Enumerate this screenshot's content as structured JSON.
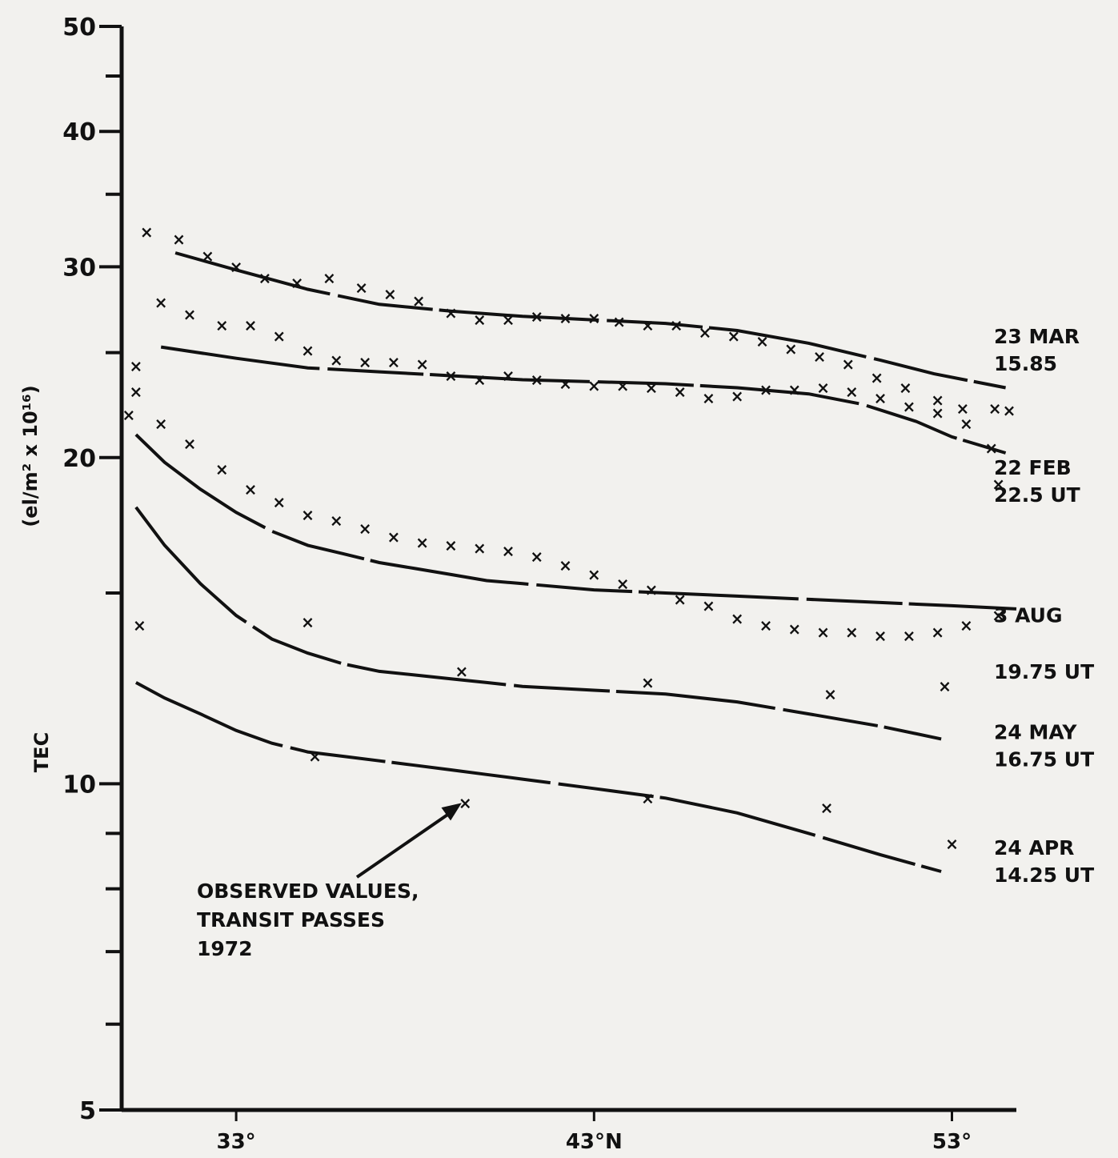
{
  "chart_data": {
    "type": "line",
    "x_unit": "latitude (°N)",
    "y_scale": "log",
    "ylim": [
      5,
      50
    ],
    "xlim": [
      29.8,
      54.8
    ],
    "ylabel_line1": "TEC",
    "ylabel_line2": "(el/m² x 10¹⁶)",
    "yticks": [
      {
        "value": 5,
        "label": "5"
      },
      {
        "value": 10,
        "label": "10"
      },
      {
        "value": 20,
        "label": "20"
      },
      {
        "value": 30,
        "label": "30"
      },
      {
        "value": 40,
        "label": "40"
      },
      {
        "value": 50,
        "label": "50"
      }
    ],
    "yminor": [
      6,
      7,
      8,
      9,
      15,
      25,
      35,
      45
    ],
    "xticks": [
      {
        "value": 33,
        "label": "33°"
      },
      {
        "value": 43,
        "label": "43°N"
      },
      {
        "value": 53,
        "label": "53°"
      }
    ],
    "annotation": {
      "lines": [
        "OBSERVED VALUES,",
        "TRANSIT PASSES",
        "1972"
      ],
      "arrow_to": {
        "x": 39.3,
        "y": 9.6
      }
    },
    "curve_labels": [
      {
        "lines": [
          "23 MAR",
          "15.85"
        ],
        "y": 25.5
      },
      {
        "lines": [
          "22 FEB",
          "22.5 UT"
        ],
        "y": 19.3
      },
      {
        "lines": [
          "3 AUG"
        ],
        "y": 14.1
      },
      {
        "lines": [
          "19.75 UT"
        ],
        "y": 12.5
      },
      {
        "lines": [
          "24 MAY",
          "16.75 UT"
        ],
        "y": 11.0
      },
      {
        "lines": [
          "24 APR",
          "14.25 UT"
        ],
        "y": 8.6
      }
    ],
    "curves": [
      {
        "x": [
          31.3,
          33.0,
          35.0,
          37.0,
          39.0,
          41.0,
          43.0,
          45.0,
          47.0,
          49.0,
          51.0,
          52.5,
          54.5
        ],
        "y": [
          30.9,
          29.8,
          28.6,
          27.7,
          27.3,
          27.0,
          26.8,
          26.6,
          26.2,
          25.5,
          24.6,
          23.9,
          23.2
        ]
      },
      {
        "x": [
          30.9,
          33.0,
          35.0,
          37.0,
          39.0,
          41.0,
          43.0,
          45.0,
          47.0,
          49.0,
          50.5,
          52.0,
          53.0,
          54.5
        ],
        "y": [
          25.3,
          24.7,
          24.2,
          24.0,
          23.8,
          23.6,
          23.5,
          23.4,
          23.2,
          22.9,
          22.4,
          21.6,
          20.9,
          20.2
        ]
      },
      {
        "x": [
          30.2,
          31.0,
          32.0,
          33.0,
          34.0,
          35.0,
          36.0,
          37.0,
          38.0,
          39.0,
          40.0,
          41.0,
          43.0,
          45.0,
          47.0,
          49.0,
          51.0,
          53.0,
          54.8
        ],
        "y": [
          21.0,
          19.8,
          18.7,
          17.8,
          17.1,
          16.6,
          16.3,
          16.0,
          15.8,
          15.6,
          15.4,
          15.3,
          15.1,
          15.0,
          14.9,
          14.8,
          14.7,
          14.6,
          14.5
        ]
      },
      {
        "x": [
          30.2,
          31.0,
          32.0,
          33.0,
          34.0,
          35.0,
          36.0,
          37.0,
          38.0,
          39.0,
          40.0,
          41.0,
          43.0,
          45.0,
          47.0,
          49.0,
          51.0,
          52.7
        ],
        "y": [
          18.0,
          16.6,
          15.3,
          14.3,
          13.6,
          13.2,
          12.9,
          12.7,
          12.6,
          12.5,
          12.4,
          12.3,
          12.2,
          12.1,
          11.9,
          11.6,
          11.3,
          11.0
        ]
      },
      {
        "x": [
          30.2,
          31.0,
          32.0,
          33.0,
          34.0,
          35.0,
          36.0,
          37.0,
          38.0,
          39.0,
          40.0,
          41.0,
          43.0,
          45.0,
          47.0,
          49.0,
          51.0,
          52.7
        ],
        "y": [
          12.4,
          12.0,
          11.6,
          11.2,
          10.9,
          10.7,
          10.6,
          10.5,
          10.4,
          10.3,
          10.2,
          10.1,
          9.9,
          9.7,
          9.4,
          9.0,
          8.6,
          8.3
        ]
      }
    ],
    "observations": [
      {
        "name": "23 MAR 15.85 observed",
        "x": [
          30.5,
          31.4,
          32.2,
          33.0,
          33.8,
          34.7,
          35.6,
          36.5,
          37.3,
          38.1,
          39.0,
          39.8,
          40.6,
          41.4,
          42.2,
          43.0,
          43.7,
          44.5,
          45.3,
          46.1,
          46.9,
          47.7,
          48.5,
          49.3,
          50.1,
          50.9,
          51.7,
          52.6,
          53.3,
          54.2
        ],
        "y": [
          32.3,
          31.8,
          30.7,
          30.0,
          29.3,
          29.0,
          29.3,
          28.7,
          28.3,
          27.9,
          27.2,
          26.8,
          26.8,
          27.0,
          26.9,
          26.9,
          26.7,
          26.5,
          26.5,
          26.1,
          25.9,
          25.6,
          25.2,
          24.8,
          24.4,
          23.7,
          23.2,
          22.6,
          22.2,
          22.2
        ]
      },
      {
        "name": "22 FEB 22.5 UT observed",
        "x": [
          30.2,
          30.9,
          31.7,
          32.6,
          33.4,
          34.2,
          35.0,
          35.8,
          36.6,
          37.4,
          38.2,
          39.0,
          39.8,
          40.6,
          41.4,
          42.2,
          43.0,
          43.8,
          44.6,
          45.4,
          46.2,
          47.0,
          47.8,
          48.6,
          49.4,
          50.2,
          51.0,
          51.8,
          52.6,
          53.4,
          54.1
        ],
        "y": [
          24.3,
          27.8,
          27.1,
          26.5,
          26.5,
          25.9,
          25.1,
          24.6,
          24.5,
          24.5,
          24.4,
          23.8,
          23.6,
          23.8,
          23.6,
          23.4,
          23.3,
          23.3,
          23.2,
          23.0,
          22.7,
          22.8,
          23.1,
          23.1,
          23.2,
          23.0,
          22.7,
          22.3,
          22.0,
          21.5,
          20.4
        ]
      },
      {
        "name": "3 AUG 19.75 UT observed",
        "x": [
          30.2,
          30.9,
          31.7,
          32.6,
          33.4,
          34.2,
          35.0,
          35.8,
          36.6,
          37.4,
          38.2,
          39.0,
          39.8,
          40.6,
          41.4,
          42.2,
          43.0,
          43.8,
          44.6,
          45.4,
          46.2,
          47.0,
          47.8,
          48.6,
          49.4,
          50.2,
          51.0,
          51.8,
          52.6,
          53.4,
          54.3
        ],
        "y": [
          23.0,
          21.5,
          20.6,
          19.5,
          18.7,
          18.2,
          17.7,
          17.5,
          17.2,
          16.9,
          16.7,
          16.6,
          16.5,
          16.4,
          16.2,
          15.9,
          15.6,
          15.3,
          15.1,
          14.8,
          14.6,
          14.2,
          14.0,
          13.9,
          13.8,
          13.8,
          13.7,
          13.7,
          13.8,
          14.0,
          14.3
        ]
      },
      {
        "name": "24 MAY 16.75 UT observed",
        "x": [
          30.3,
          35.0,
          39.3,
          44.5,
          49.6,
          52.8
        ],
        "y": [
          14.0,
          14.1,
          12.7,
          12.4,
          12.1,
          12.3
        ]
      },
      {
        "name": "24 APR 14.25 UT observed",
        "x": [
          35.2,
          39.4,
          44.5,
          49.5,
          53.0
        ],
        "y": [
          10.6,
          9.6,
          9.7,
          9.5,
          8.8
        ]
      },
      {
        "name": "isolated observed",
        "x": [
          30.0,
          54.6,
          54.3
        ],
        "y": [
          21.9,
          22.1,
          18.9
        ]
      }
    ]
  }
}
